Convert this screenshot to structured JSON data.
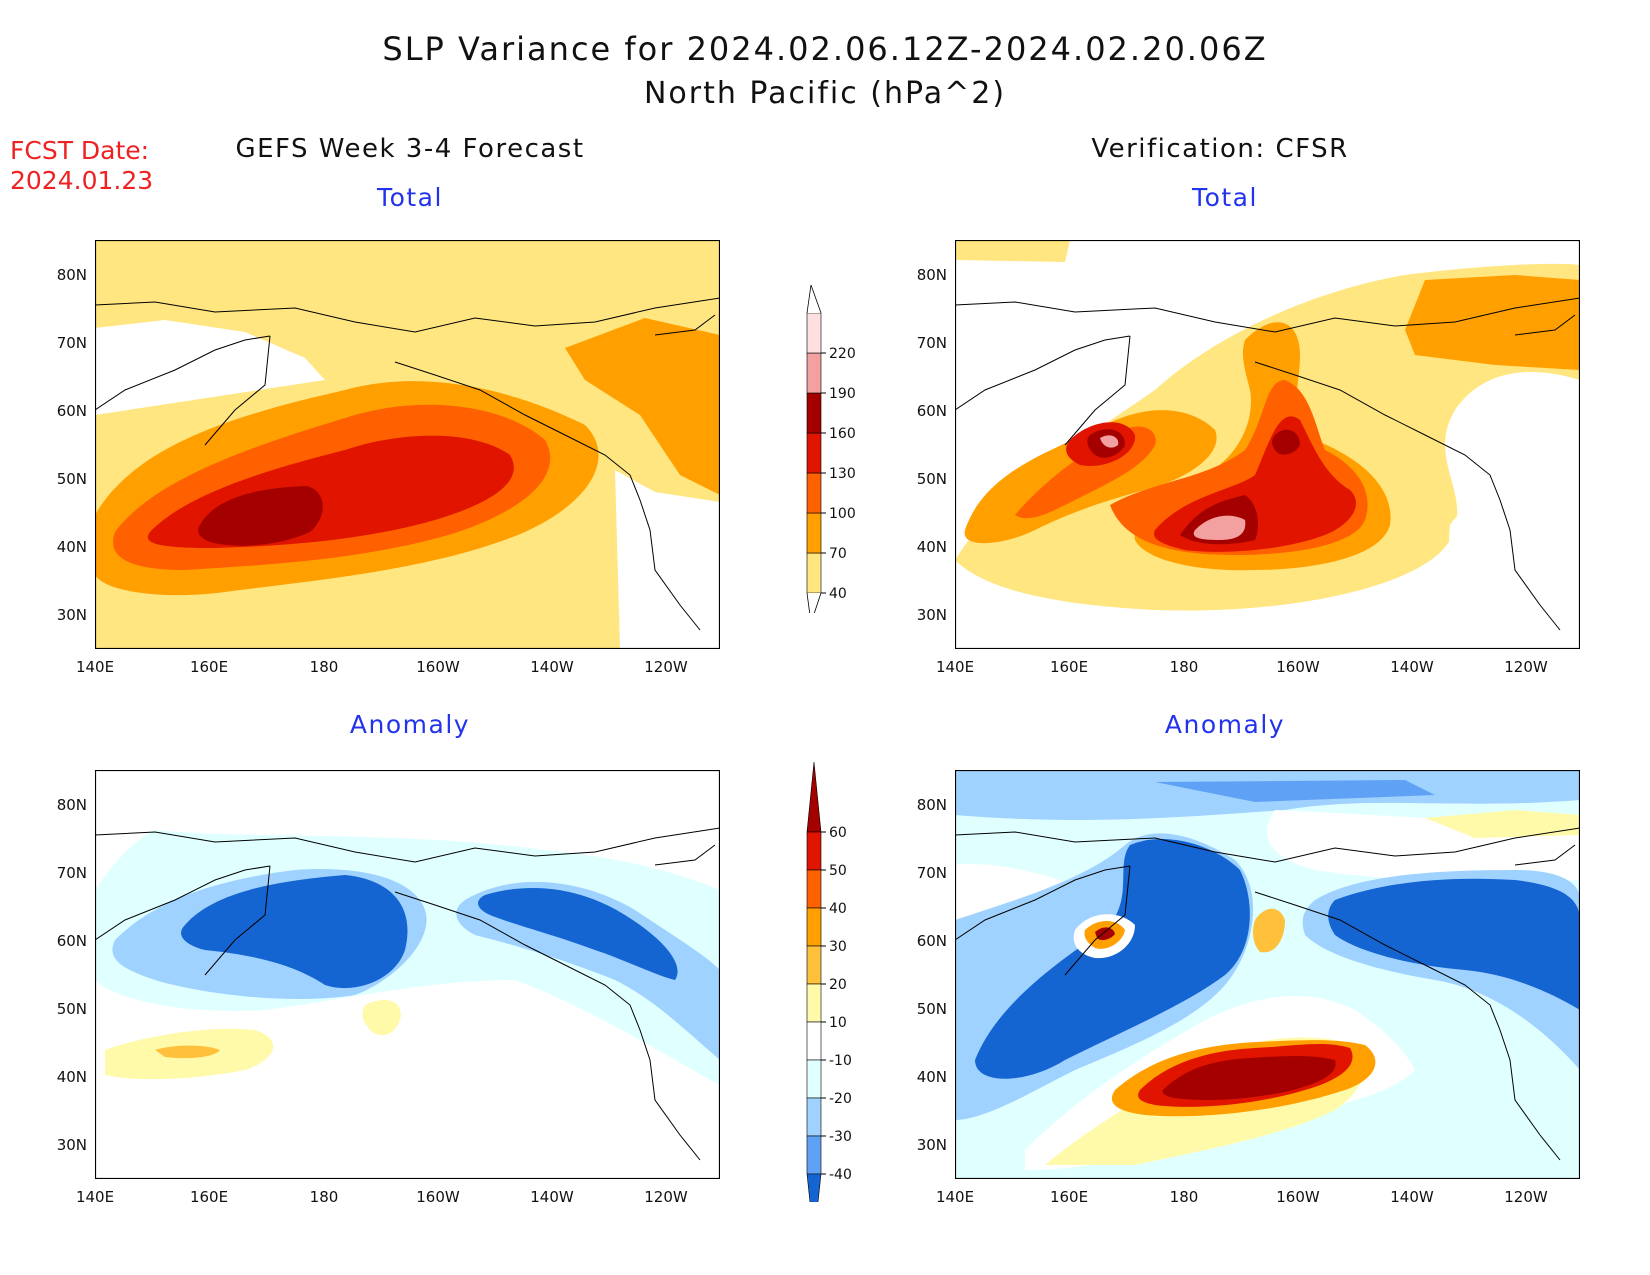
{
  "title": "SLP Variance for 2024.02.06.12Z-2024.02.20.06Z",
  "subtitle": "North Pacific (hPa^2)",
  "fcst_date": {
    "line1": "FCST Date:",
    "line2": "2024.01.23"
  },
  "columns": {
    "left": "GEFS Week 3-4 Forecast",
    "right": "Verification: CFSR"
  },
  "panels": {
    "total": "Total",
    "anomaly": "Anomaly"
  },
  "lat_labels": [
    "80N",
    "70N",
    "60N",
    "50N",
    "40N",
    "30N"
  ],
  "lon_labels": [
    "140E",
    "160E",
    "180",
    "160W",
    "140W",
    "120W"
  ],
  "colors": {
    "total": [
      "#ffe680",
      "#ffa000",
      "#ff6000",
      "#e11400",
      "#a50000",
      "#f2a0a0",
      "#ffe0e0"
    ],
    "anomaly_neg": [
      "#e0ffff",
      "#a0d2ff",
      "#5fa2f5",
      "#1464d2"
    ],
    "anomaly_pos": [
      "#fffaaa",
      "#ffc03c",
      "#ffa000",
      "#ff6000",
      "#e11400",
      "#a50000"
    ]
  },
  "colorbar_total": [
    "220",
    "190",
    "160",
    "130",
    "100",
    "70",
    "40"
  ],
  "colorbar_anomaly": [
    "60",
    "50",
    "40",
    "30",
    "20",
    "10",
    "-10",
    "-20",
    "-30",
    "-40"
  ]
}
